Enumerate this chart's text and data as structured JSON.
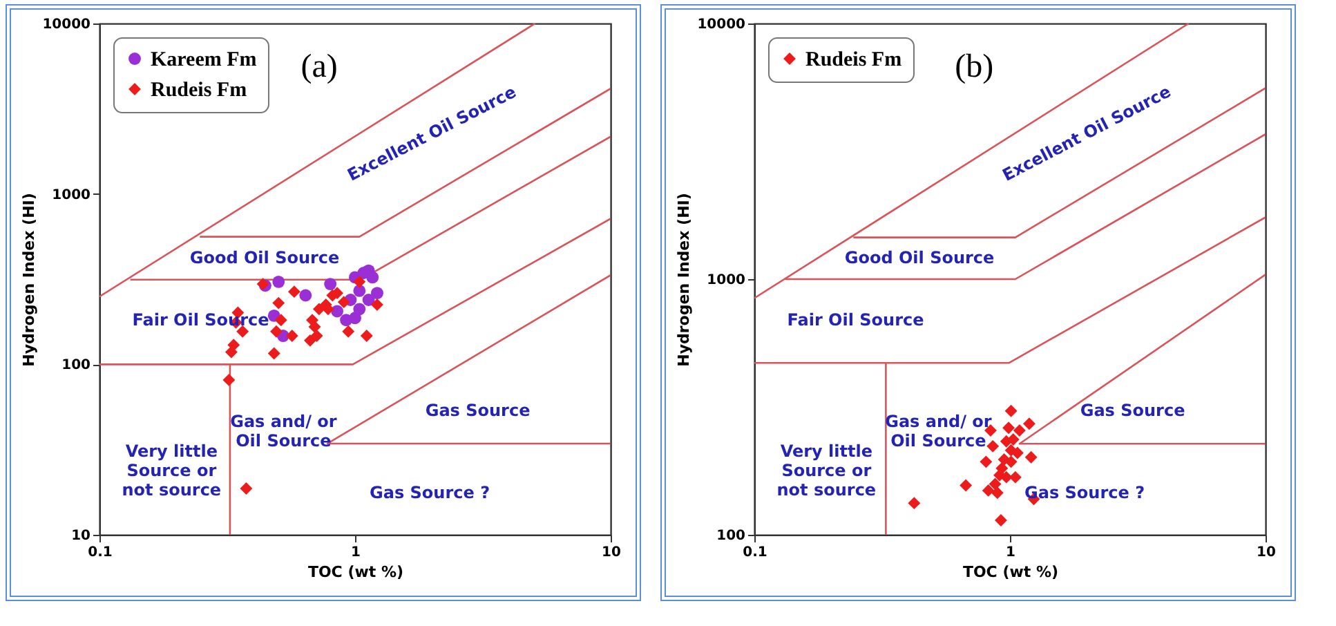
{
  "chart_data": [
    {
      "type": "scatter",
      "xlabel": "TOC (wt %)",
      "ylabel": "Hydrogen Index (HI)",
      "log": "xy",
      "grid": false,
      "legend": "top left",
      "xlim": [
        0.1,
        10
      ],
      "xticks": [
        0.1,
        1,
        10
      ],
      "ylim": [
        10,
        10000
      ],
      "yticks": [
        10,
        100,
        1000,
        10000
      ],
      "series": [
        {
          "type": "line",
          "color": "#d9545a",
          "x": [
            0.1,
            5.06
          ],
          "values": [
            250,
            10000
          ]
        },
        {
          "type": "line",
          "color": "#d9545a",
          "x": [
            0.247,
            1.04,
            10
          ],
          "values": [
            561,
            561,
            4150
          ]
        },
        {
          "type": "line",
          "color": "#d9545a",
          "x": [
            0.132,
            1.05,
            10
          ],
          "values": [
            314,
            314,
            2170
          ]
        },
        {
          "type": "line",
          "color": "#d9545a",
          "x": [
            0.1,
            0.98,
            10
          ],
          "values": [
            100,
            100,
            716
          ]
        },
        {
          "type": "line",
          "color": "#d9545a",
          "x": [
            10,
            0.78,
            10
          ],
          "values": [
            34.3,
            34.3,
            334
          ]
        },
        {
          "type": "line",
          "color": "#d9545a",
          "x": [
            0.324,
            0.324
          ],
          "values": [
            100,
            10
          ]
        },
        {
          "name": "Kareem Fm",
          "type": "scatter",
          "marker": "circle",
          "color": "#9b2fd6",
          "x": [
            0.445,
            0.502,
            0.64,
            0.8,
            0.482,
            0.523,
            0.851,
            0.96,
            1.0,
            1.04,
            1.08,
            1.13,
            1.17,
            1.22,
            1.0,
            1.04,
            0.923,
            1.13
          ],
          "values": [
            290,
            305,
            254,
            296,
            193,
            147,
            205,
            239,
            324,
            270,
            344,
            355,
            324,
            262,
            187,
            211,
            182,
            239
          ]
        },
        {
          "name": "Rudeis Fm",
          "type": "scatter",
          "marker": "diamond",
          "color": "#ec1c1c",
          "x": [
            0.436,
            0.502,
            0.578,
            0.348,
            0.342,
            0.363,
            0.335,
            0.328,
            0.321,
            0.375,
            0.482,
            0.492,
            0.513,
            0.567,
            0.667,
            0.68,
            0.695,
            0.708,
            0.723,
            0.769,
            0.816,
            0.851,
            0.904,
            0.941,
            1.04,
            1.11,
            1.22,
            0.784
          ],
          "values": [
            296,
            229,
            267,
            201,
            176,
            156,
            130,
            118,
            81,
            18.7,
            116,
            156,
            182,
            147,
            138,
            182,
            166,
            147,
            211,
            224,
            254,
            262,
            232,
            156,
            305,
            147,
            224,
            211
          ]
        }
      ],
      "annotations": [
        "Excellent Oil Source",
        "Good Oil Source",
        "Fair Oil Source",
        "Gas and/ or\nOil Source",
        "Gas Source",
        "Very little\nSource or\nnot source",
        "Gas Source ?",
        "(a)"
      ]
    },
    {
      "type": "scatter",
      "xlabel": "TOC (wt %)",
      "ylabel": "Hydrogen Index (HI)",
      "log": "xy",
      "grid": false,
      "legend": "top left",
      "xlim": [
        0.1,
        10
      ],
      "xticks": [
        0.1,
        1,
        10
      ],
      "ylim": [
        100,
        10000
      ],
      "yticks": [
        100,
        1000,
        10000
      ],
      "series": [
        {
          "type": "line",
          "color": "#d9545a",
          "x": [
            0.1,
            5.0
          ],
          "values": [
            843,
            10000
          ]
        },
        {
          "type": "line",
          "color": "#d9545a",
          "x": [
            0.244,
            1.05,
            10
          ],
          "values": [
            1456,
            1456,
            5590
          ]
        },
        {
          "type": "line",
          "color": "#d9545a",
          "x": [
            0.132,
            1.05,
            10
          ],
          "values": [
            1000,
            1000,
            3690
          ]
        },
        {
          "type": "line",
          "color": "#d9545a",
          "x": [
            0.1,
            0.99,
            10
          ],
          "values": [
            470,
            470,
            1746
          ]
        },
        {
          "type": "line",
          "color": "#d9545a",
          "x": [
            10,
            1.09,
            10
          ],
          "values": [
            227,
            227,
            1042
          ]
        },
        {
          "type": "line",
          "color": "#d9545a",
          "x": [
            0.327,
            0.327
          ],
          "values": [
            470,
            100
          ]
        },
        {
          "name": "Rudeis Fm",
          "type": "scatter",
          "marker": "diamond",
          "color": "#ec1c1c",
          "x": [
            1.01,
            0.84,
            0.988,
            1.19,
            1.09,
            0.857,
            0.968,
            1.01,
            1.07,
            0.949,
            0.806,
            1.21,
            1.01,
            0.93,
            0.911,
            1.05,
            0.875,
            0.672,
            0.823,
            0.893,
            1.24,
            0.422,
            0.922,
            1.03,
            0.968
          ],
          "values": [
            305,
            256,
            262,
            272,
            256,
            222,
            232,
            214,
            209,
            197,
            193,
            201,
            193,
            182,
            171,
            168,
            158,
            156,
            149,
            146,
            138,
            133,
            114,
            236,
            168
          ]
        }
      ],
      "annotations": [
        "Excellent Oil Source",
        "Good Oil Source",
        "Fair Oil Source",
        "Gas and/ or\nOil Source",
        "Gas Source",
        "Very little\nSource or\nnot source",
        "Gas Source ?",
        "(b)"
      ]
    }
  ]
}
